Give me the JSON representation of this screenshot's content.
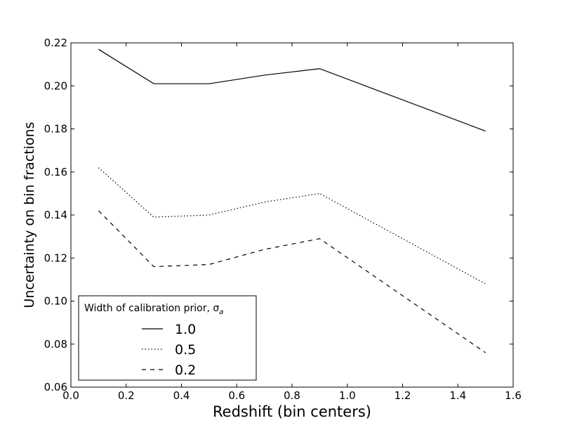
{
  "chart_data": {
    "type": "line",
    "title": "",
    "xlabel": "Redshift (bin centers)",
    "ylabel": "Uncertainty on bin fractions",
    "xlim": [
      0.0,
      1.6
    ],
    "ylim": [
      0.06,
      0.22
    ],
    "xticks": [
      "0.0",
      "0.2",
      "0.4",
      "0.6",
      "0.8",
      "1.0",
      "1.2",
      "1.4",
      "1.6"
    ],
    "yticks": [
      "0.06",
      "0.08",
      "0.10",
      "0.12",
      "0.14",
      "0.16",
      "0.18",
      "0.20",
      "0.22"
    ],
    "grid": false,
    "legend": {
      "title": "Width of calibration prior, σ",
      "title_subscript": "a",
      "placement": "lower-left"
    },
    "x": [
      0.1,
      0.3,
      0.5,
      0.7,
      0.9,
      1.5
    ],
    "series": [
      {
        "name": "1.0",
        "style": "solid",
        "color": "#000000",
        "values": [
          0.217,
          0.201,
          0.201,
          0.205,
          0.208,
          0.179
        ]
      },
      {
        "name": "0.5",
        "style": "dotted",
        "color": "#000000",
        "values": [
          0.162,
          0.139,
          0.14,
          0.146,
          0.15,
          0.108
        ]
      },
      {
        "name": "0.2",
        "style": "dashed",
        "color": "#000000",
        "values": [
          0.142,
          0.116,
          0.117,
          0.124,
          0.129,
          0.076
        ]
      }
    ]
  }
}
